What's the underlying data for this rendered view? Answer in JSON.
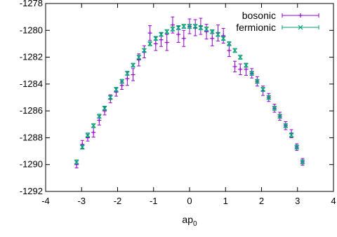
{
  "chart_data": {
    "type": "scatter",
    "xlabel": "ap",
    "xlabel_subscript": "0",
    "xlim": [
      -4,
      4
    ],
    "ylim": [
      -1292,
      -1278
    ],
    "xticks": [
      -4,
      -3,
      -2,
      -1,
      0,
      1,
      2,
      3,
      4
    ],
    "yticks": [
      -1292,
      -1290,
      -1288,
      -1286,
      -1284,
      -1282,
      -1280,
      -1278
    ],
    "grid": false,
    "legend_position": "top-right",
    "series": [
      {
        "name": "bosonic",
        "color": "#9400d3",
        "marker": "plus",
        "points": [
          {
            "x": -3.14,
            "y": -1290.0,
            "err": 0.25
          },
          {
            "x": -2.98,
            "y": -1288.5,
            "err": 0.3
          },
          {
            "x": -2.83,
            "y": -1288.0,
            "err": 0.25
          },
          {
            "x": -2.67,
            "y": -1287.6,
            "err": 0.35
          },
          {
            "x": -2.51,
            "y": -1286.7,
            "err": 0.35
          },
          {
            "x": -2.36,
            "y": -1286.0,
            "err": 0.3
          },
          {
            "x": -2.2,
            "y": -1285.1,
            "err": 0.3
          },
          {
            "x": -2.04,
            "y": -1284.6,
            "err": 0.3
          },
          {
            "x": -1.88,
            "y": -1284.1,
            "err": 0.3
          },
          {
            "x": -1.73,
            "y": -1283.6,
            "err": 0.5
          },
          {
            "x": -1.57,
            "y": -1283.3,
            "err": 0.45
          },
          {
            "x": -1.41,
            "y": -1282.2,
            "err": 0.45
          },
          {
            "x": -1.26,
            "y": -1281.6,
            "err": 0.45
          },
          {
            "x": -1.1,
            "y": -1280.2,
            "err": 0.55
          },
          {
            "x": -0.94,
            "y": -1281.0,
            "err": 0.5
          },
          {
            "x": -0.79,
            "y": -1280.7,
            "err": 0.5
          },
          {
            "x": -0.63,
            "y": -1280.9,
            "err": 0.6
          },
          {
            "x": -0.47,
            "y": -1279.6,
            "err": 0.6
          },
          {
            "x": -0.31,
            "y": -1280.3,
            "err": 0.6
          },
          {
            "x": -0.16,
            "y": -1280.6,
            "err": 0.6
          },
          {
            "x": 0.0,
            "y": -1279.7,
            "err": 0.55
          },
          {
            "x": 0.16,
            "y": -1279.8,
            "err": 0.6
          },
          {
            "x": 0.31,
            "y": -1279.7,
            "err": 0.6
          },
          {
            "x": 0.47,
            "y": -1280.1,
            "err": 0.55
          },
          {
            "x": 0.63,
            "y": -1280.6,
            "err": 0.55
          },
          {
            "x": 0.79,
            "y": -1280.2,
            "err": 0.6
          },
          {
            "x": 0.94,
            "y": -1280.4,
            "err": 0.55
          },
          {
            "x": 1.1,
            "y": -1281.5,
            "err": 0.45
          },
          {
            "x": 1.26,
            "y": -1282.7,
            "err": 0.4
          },
          {
            "x": 1.41,
            "y": -1282.9,
            "err": 0.4
          },
          {
            "x": 1.57,
            "y": -1282.9,
            "err": 0.45
          },
          {
            "x": 1.73,
            "y": -1283.2,
            "err": 0.35
          },
          {
            "x": 1.88,
            "y": -1283.8,
            "err": 0.35
          },
          {
            "x": 2.04,
            "y": -1284.5,
            "err": 0.35
          },
          {
            "x": 2.2,
            "y": -1285.0,
            "err": 0.3
          },
          {
            "x": 2.36,
            "y": -1285.8,
            "err": 0.3
          },
          {
            "x": 2.51,
            "y": -1286.4,
            "err": 0.3
          },
          {
            "x": 2.67,
            "y": -1287.1,
            "err": 0.3
          },
          {
            "x": 2.83,
            "y": -1287.7,
            "err": 0.3
          },
          {
            "x": 2.98,
            "y": -1288.7,
            "err": 0.25
          },
          {
            "x": 3.14,
            "y": -1289.8,
            "err": 0.25
          }
        ]
      },
      {
        "name": "fermionic",
        "color": "#009e73",
        "marker": "cross",
        "points": [
          {
            "x": -3.14,
            "y": -1289.8,
            "err": 0.15
          },
          {
            "x": -2.98,
            "y": -1288.7,
            "err": 0.15
          },
          {
            "x": -2.83,
            "y": -1287.8,
            "err": 0.15
          },
          {
            "x": -2.67,
            "y": -1287.1,
            "err": 0.15
          },
          {
            "x": -2.51,
            "y": -1286.4,
            "err": 0.15
          },
          {
            "x": -2.36,
            "y": -1285.8,
            "err": 0.15
          },
          {
            "x": -2.2,
            "y": -1285.0,
            "err": 0.15
          },
          {
            "x": -2.04,
            "y": -1284.4,
            "err": 0.15
          },
          {
            "x": -1.88,
            "y": -1283.8,
            "err": 0.15
          },
          {
            "x": -1.73,
            "y": -1283.2,
            "err": 0.15
          },
          {
            "x": -1.57,
            "y": -1282.6,
            "err": 0.15
          },
          {
            "x": -1.41,
            "y": -1282.0,
            "err": 0.15
          },
          {
            "x": -1.26,
            "y": -1281.5,
            "err": 0.15
          },
          {
            "x": -1.1,
            "y": -1281.0,
            "err": 0.15
          },
          {
            "x": -0.94,
            "y": -1280.6,
            "err": 0.15
          },
          {
            "x": -0.79,
            "y": -1280.3,
            "err": 0.15
          },
          {
            "x": -0.63,
            "y": -1280.1,
            "err": 0.15
          },
          {
            "x": -0.47,
            "y": -1279.9,
            "err": 0.15
          },
          {
            "x": -0.31,
            "y": -1279.8,
            "err": 0.15
          },
          {
            "x": -0.16,
            "y": -1279.7,
            "err": 0.15
          },
          {
            "x": 0.0,
            "y": -1279.7,
            "err": 0.15
          },
          {
            "x": 0.16,
            "y": -1279.7,
            "err": 0.15
          },
          {
            "x": 0.31,
            "y": -1279.8,
            "err": 0.15
          },
          {
            "x": 0.47,
            "y": -1279.9,
            "err": 0.15
          },
          {
            "x": 0.63,
            "y": -1280.1,
            "err": 0.15
          },
          {
            "x": 0.79,
            "y": -1280.3,
            "err": 0.15
          },
          {
            "x": 0.94,
            "y": -1280.6,
            "err": 0.15
          },
          {
            "x": 1.1,
            "y": -1281.0,
            "err": 0.15
          },
          {
            "x": 1.26,
            "y": -1281.5,
            "err": 0.15
          },
          {
            "x": 1.41,
            "y": -1282.0,
            "err": 0.15
          },
          {
            "x": 1.57,
            "y": -1282.6,
            "err": 0.15
          },
          {
            "x": 1.73,
            "y": -1283.2,
            "err": 0.15
          },
          {
            "x": 1.88,
            "y": -1283.8,
            "err": 0.15
          },
          {
            "x": 2.04,
            "y": -1284.4,
            "err": 0.15
          },
          {
            "x": 2.2,
            "y": -1285.0,
            "err": 0.15
          },
          {
            "x": 2.36,
            "y": -1285.8,
            "err": 0.15
          },
          {
            "x": 2.51,
            "y": -1286.4,
            "err": 0.15
          },
          {
            "x": 2.67,
            "y": -1287.1,
            "err": 0.15
          },
          {
            "x": 2.83,
            "y": -1287.8,
            "err": 0.15
          },
          {
            "x": 2.98,
            "y": -1288.7,
            "err": 0.15
          },
          {
            "x": 3.14,
            "y": -1289.8,
            "err": 0.15
          }
        ]
      }
    ]
  }
}
